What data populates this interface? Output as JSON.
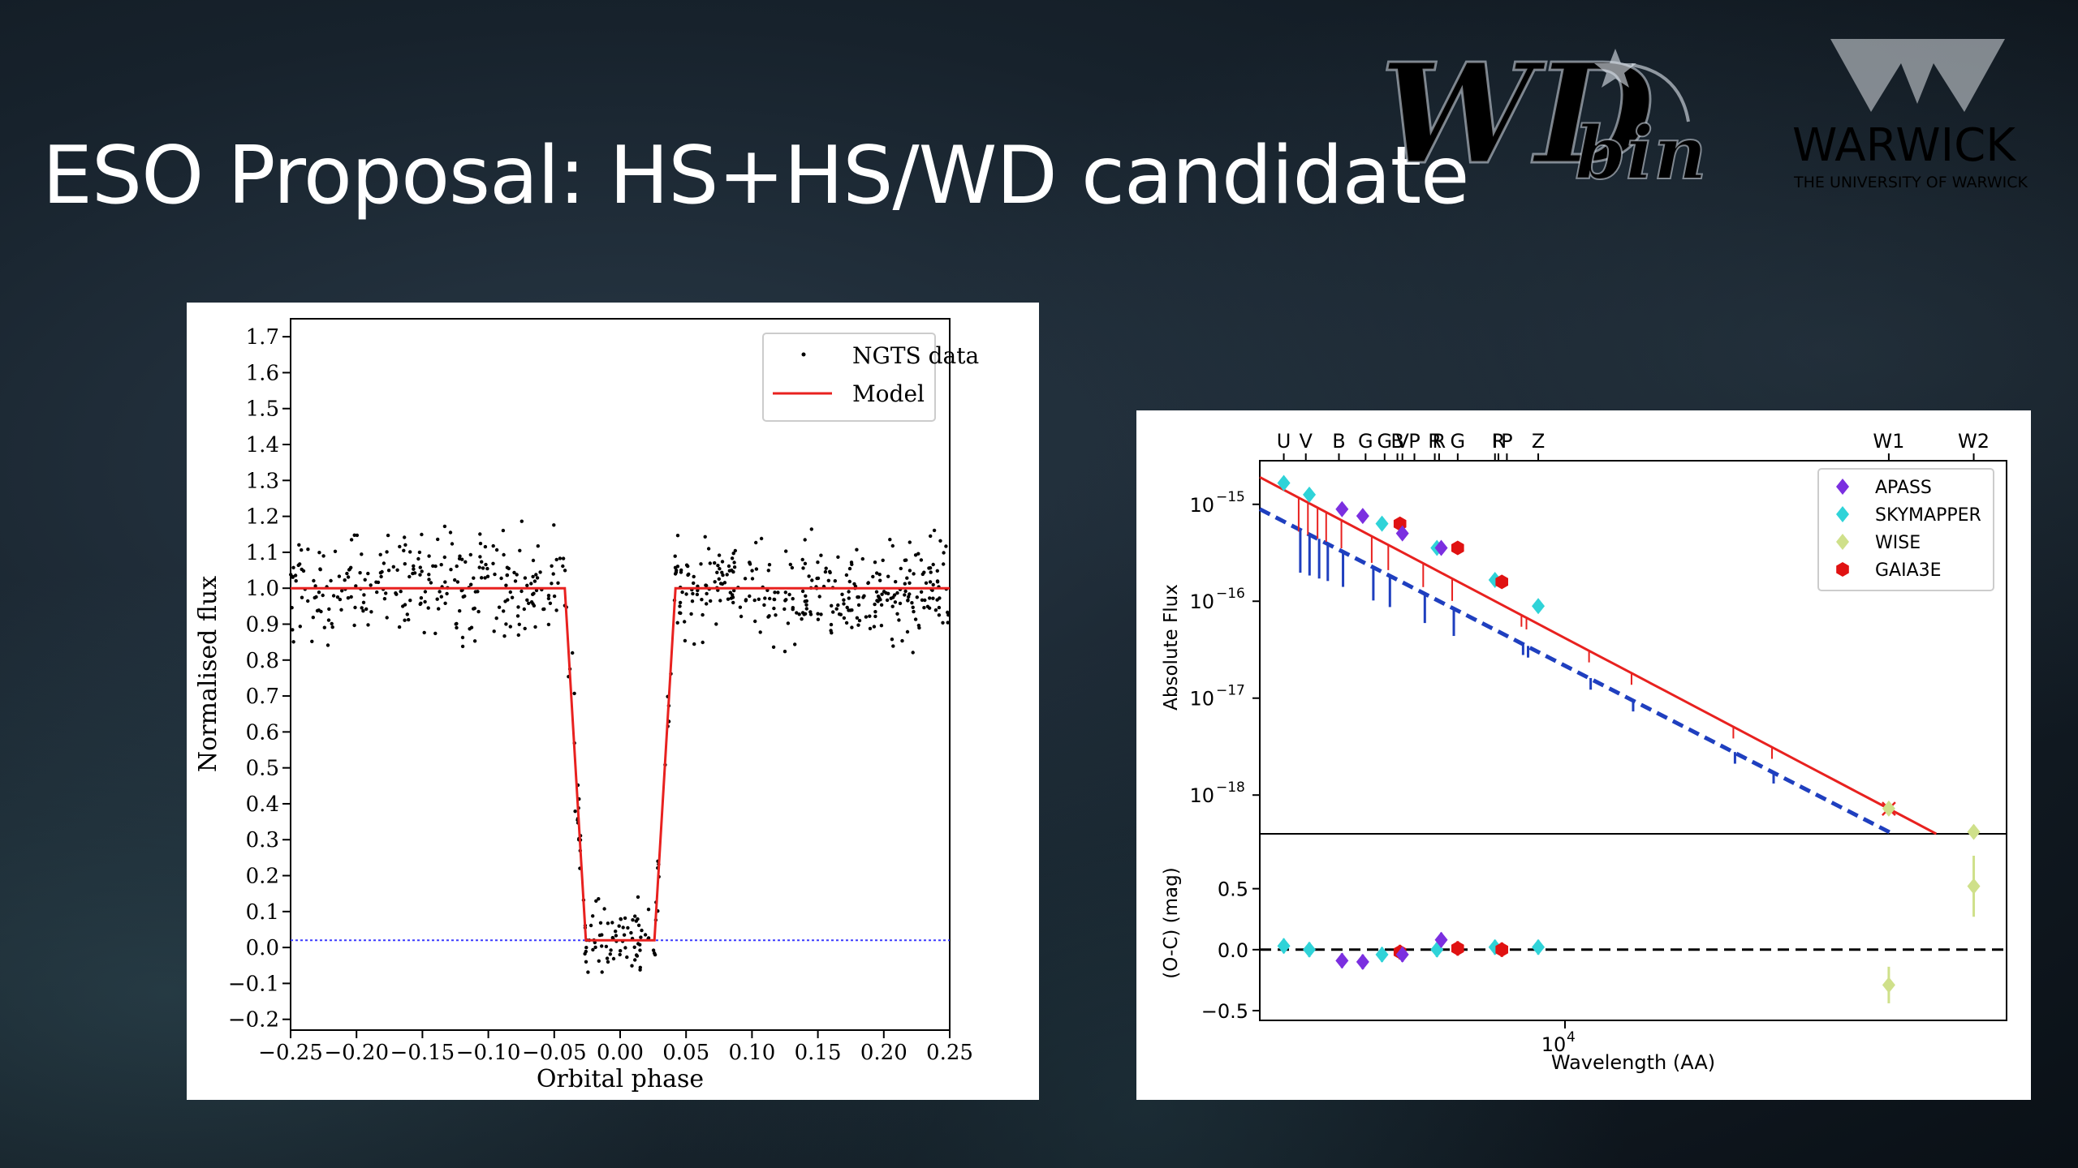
{
  "slide": {
    "title": "ESO Proposal: HS+HS/WD candidate",
    "logos": {
      "wdbin": {
        "text_primary": "WD",
        "text_secondary": "bin"
      },
      "warwick": {
        "name": "WARWICK",
        "subtitle": "THE UNIVERSITY OF WARWICK"
      }
    }
  },
  "chart_data": [
    {
      "type": "scatter",
      "xlabel": "Orbital phase",
      "ylabel": "Normalised flux",
      "xlim": [
        -0.25,
        0.25
      ],
      "ylim": [
        -0.23,
        1.75
      ],
      "xticks": [
        "−0.25",
        "−0.20",
        "−0.15",
        "−0.10",
        "−0.05",
        "0.00",
        "0.05",
        "0.10",
        "0.15",
        "0.20",
        "0.25"
      ],
      "yticks": [
        "−0.2",
        "−0.1",
        "0.0",
        "0.1",
        "0.2",
        "0.3",
        "0.4",
        "0.5",
        "0.6",
        "0.7",
        "0.8",
        "0.9",
        "1.0",
        "1.1",
        "1.2",
        "1.3",
        "1.4",
        "1.5",
        "1.6",
        "1.7"
      ],
      "legend_position": "top-right",
      "grid": false,
      "series": [
        {
          "name": "NGTS data",
          "kind": "points",
          "color": "#000000",
          "n_points": 700,
          "model_level_out": 1.0,
          "model_level_in": 0.02,
          "scatter_sigma": 0.11
        },
        {
          "name": "Model",
          "kind": "line",
          "color": "#e8211f",
          "x": [
            -0.25,
            -0.042,
            -0.026,
            0.026,
            0.042,
            0.25
          ],
          "y": [
            1.0,
            1.0,
            0.02,
            0.02,
            1.0,
            1.0
          ]
        },
        {
          "kind": "reference-line",
          "color": "#3b3bff",
          "style": "dotted",
          "y": 0.02
        }
      ]
    },
    {
      "type": "line",
      "xlabel": "Wavelength (AA)",
      "ylabel_top": "Absolute Flux",
      "ylabel_bottom": "(O-C) (mag)",
      "xscale": "log",
      "xlim": [
        3200,
        52000
      ],
      "x_tick_label": "10",
      "x_tick_exponent": "4",
      "ylim_top_log10": [
        -18.4,
        -14.55
      ],
      "yticks_top": [
        {
          "base": "10",
          "exp": "−15"
        },
        {
          "base": "10",
          "exp": "−16"
        },
        {
          "base": "10",
          "exp": "−17"
        },
        {
          "base": "10",
          "exp": "−18"
        }
      ],
      "ylim_bottom": [
        -0.58,
        0.95
      ],
      "yticks_bottom": [
        "0.5",
        "0.0",
        "−0.5"
      ],
      "filters": [
        {
          "label": "U",
          "wl": 3500
        },
        {
          "label": "V",
          "wl": 3800
        },
        {
          "label": "B",
          "wl": 4300
        },
        {
          "label": "G",
          "wl": 4750
        },
        {
          "label": "G",
          "wl": 5100
        },
        {
          "label": "B",
          "wl": 5350
        },
        {
          "label": "V",
          "wl": 5450
        },
        {
          "label": "P",
          "wl": 5700
        },
        {
          "label": "R",
          "wl": 6150
        },
        {
          "label": "R",
          "wl": 6250
        },
        {
          "label": "G",
          "wl": 6700
        },
        {
          "label": "I",
          "wl": 7700
        },
        {
          "label": "R",
          "wl": 7800
        },
        {
          "label": "P",
          "wl": 8050
        },
        {
          "label": "Z",
          "wl": 9050
        },
        {
          "label": "W1",
          "wl": 33500
        },
        {
          "label": "W2",
          "wl": 46000
        }
      ],
      "legend_position": "top-right",
      "legend": [
        {
          "name": "APASS",
          "color": "#7b2fe0"
        },
        {
          "name": "SKYMAPPER",
          "color": "#2fd3d8"
        },
        {
          "name": "WISE",
          "color": "#cfe08a"
        },
        {
          "name": "GAIA3E",
          "color": "#e01212"
        }
      ],
      "model_red": {
        "color": "#e8211f",
        "wl": [
          3200,
          40000
        ],
        "log10_flux": [
          -14.72,
          -18.4
        ]
      },
      "model_blue": {
        "color": "#1f3fbf",
        "style": "dashed",
        "wl": [
          3200,
          34000
        ],
        "log10_flux": [
          -15.05,
          -18.4
        ]
      },
      "points": [
        {
          "survey": "SKYMAPPER",
          "wl": 3500,
          "log10_flux": -14.78,
          "oc": 0.03
        },
        {
          "survey": "SKYMAPPER",
          "wl": 3850,
          "log10_flux": -14.9,
          "oc": 0.0
        },
        {
          "survey": "APASS",
          "wl": 4350,
          "log10_flux": -15.05,
          "oc": -0.09
        },
        {
          "survey": "APASS",
          "wl": 4700,
          "log10_flux": -15.12,
          "oc": -0.1
        },
        {
          "survey": "SKYMAPPER",
          "wl": 5050,
          "log10_flux": -15.2,
          "oc": -0.04
        },
        {
          "survey": "GAIA3E",
          "wl": 5400,
          "log10_flux": -15.2,
          "oc": -0.02
        },
        {
          "survey": "APASS",
          "wl": 5450,
          "log10_flux": -15.3,
          "oc": -0.04
        },
        {
          "survey": "SKYMAPPER",
          "wl": 6200,
          "log10_flux": -15.45,
          "oc": 0.0
        },
        {
          "survey": "APASS",
          "wl": 6300,
          "log10_flux": -15.45,
          "oc": 0.08
        },
        {
          "survey": "GAIA3E",
          "wl": 6700,
          "log10_flux": -15.45,
          "oc": 0.01
        },
        {
          "survey": "SKYMAPPER",
          "wl": 7700,
          "log10_flux": -15.78,
          "oc": 0.02
        },
        {
          "survey": "GAIA3E",
          "wl": 7900,
          "log10_flux": -15.8,
          "oc": 0.0
        },
        {
          "survey": "SKYMAPPER",
          "wl": 9050,
          "log10_flux": -16.05,
          "oc": 0.02
        },
        {
          "survey": "WISE",
          "wl": 33500,
          "log10_flux": -18.14,
          "oc": -0.29
        },
        {
          "survey": "WISE",
          "wl": 46000,
          "log10_flux": -18.38,
          "oc": 0.52
        }
      ]
    }
  ]
}
